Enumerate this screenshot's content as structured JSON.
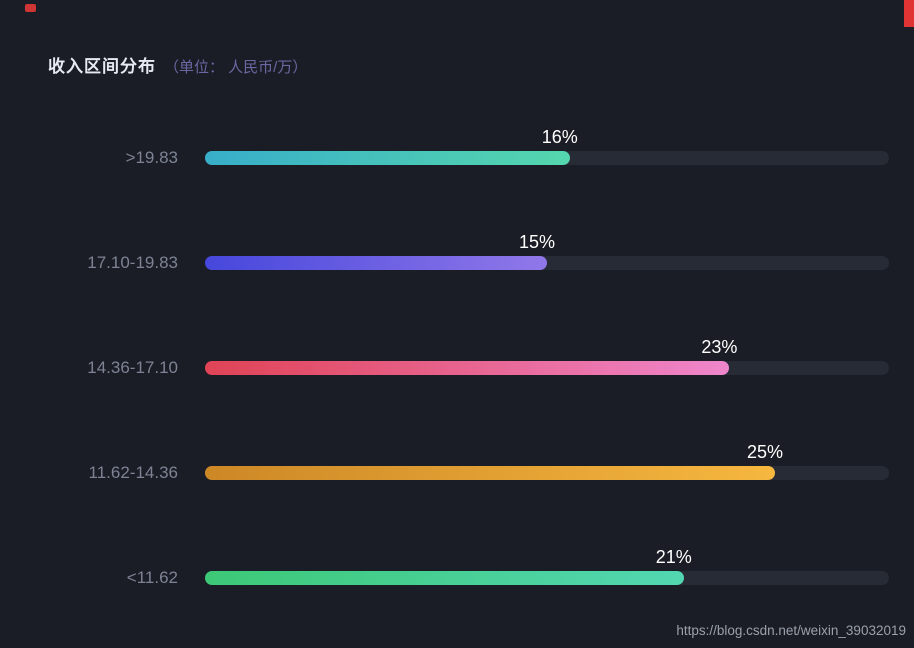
{
  "page": {
    "background": "#1a1d25",
    "watermark": "https://blog.csdn.net/weixin_39032019"
  },
  "chart_data": {
    "type": "bar",
    "orientation": "horizontal",
    "title": "收入区间分布",
    "subtitle": "（单位： 人民币/万）",
    "value_suffix": "%",
    "axis_max": 30,
    "grid": false,
    "legend": false,
    "track_color": "#262b36",
    "categories": [
      ">19.83",
      "17.10-19.83",
      "14.36-17.10",
      "11.62-14.36",
      "<11.62"
    ],
    "values": [
      16,
      15,
      23,
      25,
      21
    ],
    "series": [
      {
        "label": ">19.83",
        "value": 16,
        "gradient": [
          "#38aec9",
          "#55d7ad"
        ]
      },
      {
        "label": "17.10-19.83",
        "value": 15,
        "gradient": [
          "#4647dc",
          "#9178e9"
        ]
      },
      {
        "label": "14.36-17.10",
        "value": 23,
        "gradient": [
          "#e04355",
          "#ef86cc"
        ]
      },
      {
        "label": "11.62-14.36",
        "value": 25,
        "gradient": [
          "#cd8826",
          "#f6b73f"
        ]
      },
      {
        "label": "<11.62",
        "value": 21,
        "gradient": [
          "#3dc877",
          "#53d7b2"
        ]
      }
    ]
  }
}
